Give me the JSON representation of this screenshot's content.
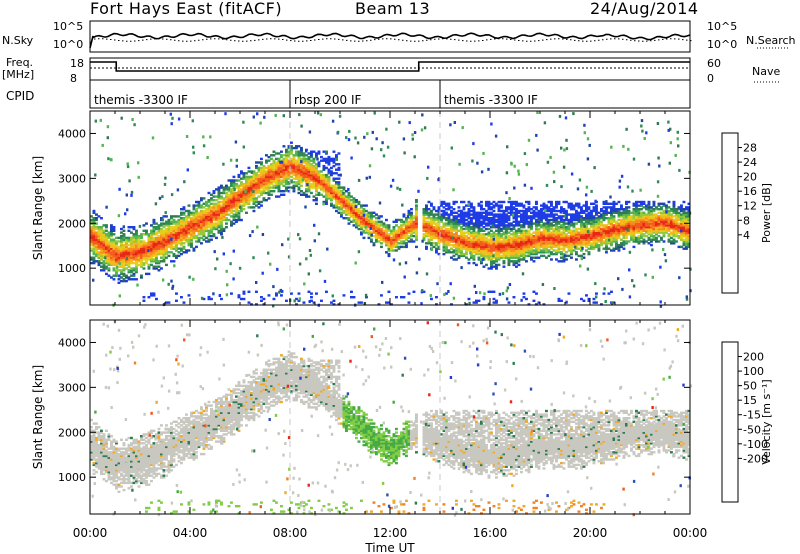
{
  "header": {
    "radar": "Fort Hays East (fitACF)",
    "beam": "Beam 13",
    "date": "24/Aug/2014"
  },
  "left_labels": {
    "nsky": "N.Sky",
    "freq": "Freq.",
    "freq_unit": "[MHz]",
    "cpid": "CPID"
  },
  "right_labels": {
    "nsearch": "N.Search",
    "nave": "Nave"
  },
  "nsky_ticks": [
    "10^5",
    "10^0"
  ],
  "nsearch_ticks": [
    "10^5",
    "10^0"
  ],
  "freq_ticks": [
    "18",
    "8"
  ],
  "nave_ticks": [
    "60",
    "0"
  ],
  "cpid_segments": [
    {
      "label": "themis -3300 IF",
      "start_hour": 0
    },
    {
      "label": "rbsp 200 IF",
      "start_hour": 8
    },
    {
      "label": "themis -3300 IF",
      "start_hour": 14
    }
  ],
  "chart_data": {
    "type": "heatmap",
    "x_label": "Time UT",
    "x_range_hours": [
      0,
      24
    ],
    "x_ticks": [
      "00:00",
      "04:00",
      "08:00",
      "12:00",
      "16:00",
      "20:00",
      "00:00"
    ],
    "y_label": "Slant Range [km]",
    "y_range_km": [
      180,
      4500
    ],
    "y_ticks": [
      1000,
      2000,
      3000,
      4000
    ],
    "panels": [
      {
        "name": "Power",
        "colorbar_label": "Power [dB]",
        "colorbar_ticks": [
          "28",
          "24",
          "20",
          "16",
          "12",
          "8",
          "4"
        ],
        "colors": [
          "#1e3ce6",
          "#1e46aa",
          "#327850",
          "#2d8c55",
          "#55b450",
          "#96c83c",
          "#e1d21e",
          "#f5b91e",
          "#f58c1e",
          "#f55a1e",
          "#e62814"
        ]
      },
      {
        "name": "Velocity",
        "colorbar_label": "Velocity [m s^-1]",
        "colorbar_ticks": [
          "200",
          "100",
          "50",
          "15",
          "-15",
          "-50",
          "-100",
          "-200"
        ],
        "colors": [
          "#283cc8",
          "#3250b4",
          "#2d7d50",
          "#46aa46",
          "#82cd46",
          "#c8c8c0",
          "#c8c8c0",
          "#f0aa28",
          "#f08228",
          "#f05a1e",
          "#e62814"
        ]
      }
    ],
    "echo_band_km": [
      [
        0,
        1700
      ],
      [
        1,
        1250
      ],
      [
        2,
        1350
      ],
      [
        3,
        1600
      ],
      [
        4,
        1900
      ],
      [
        5,
        2200
      ],
      [
        6,
        2600
      ],
      [
        7,
        3000
      ],
      [
        8,
        3250
      ],
      [
        9,
        3000
      ],
      [
        10,
        2500
      ],
      [
        11,
        2000
      ],
      [
        12,
        1600
      ],
      [
        13,
        2000
      ],
      [
        14,
        1750
      ],
      [
        15,
        1550
      ],
      [
        16,
        1450
      ],
      [
        17,
        1500
      ],
      [
        18,
        1650
      ],
      [
        19,
        1600
      ],
      [
        20,
        1700
      ],
      [
        21,
        1850
      ],
      [
        22,
        1950
      ],
      [
        23,
        2000
      ],
      [
        24,
        1800
      ]
    ],
    "data_gap_hours": [
      13.1,
      13.25
    ]
  }
}
